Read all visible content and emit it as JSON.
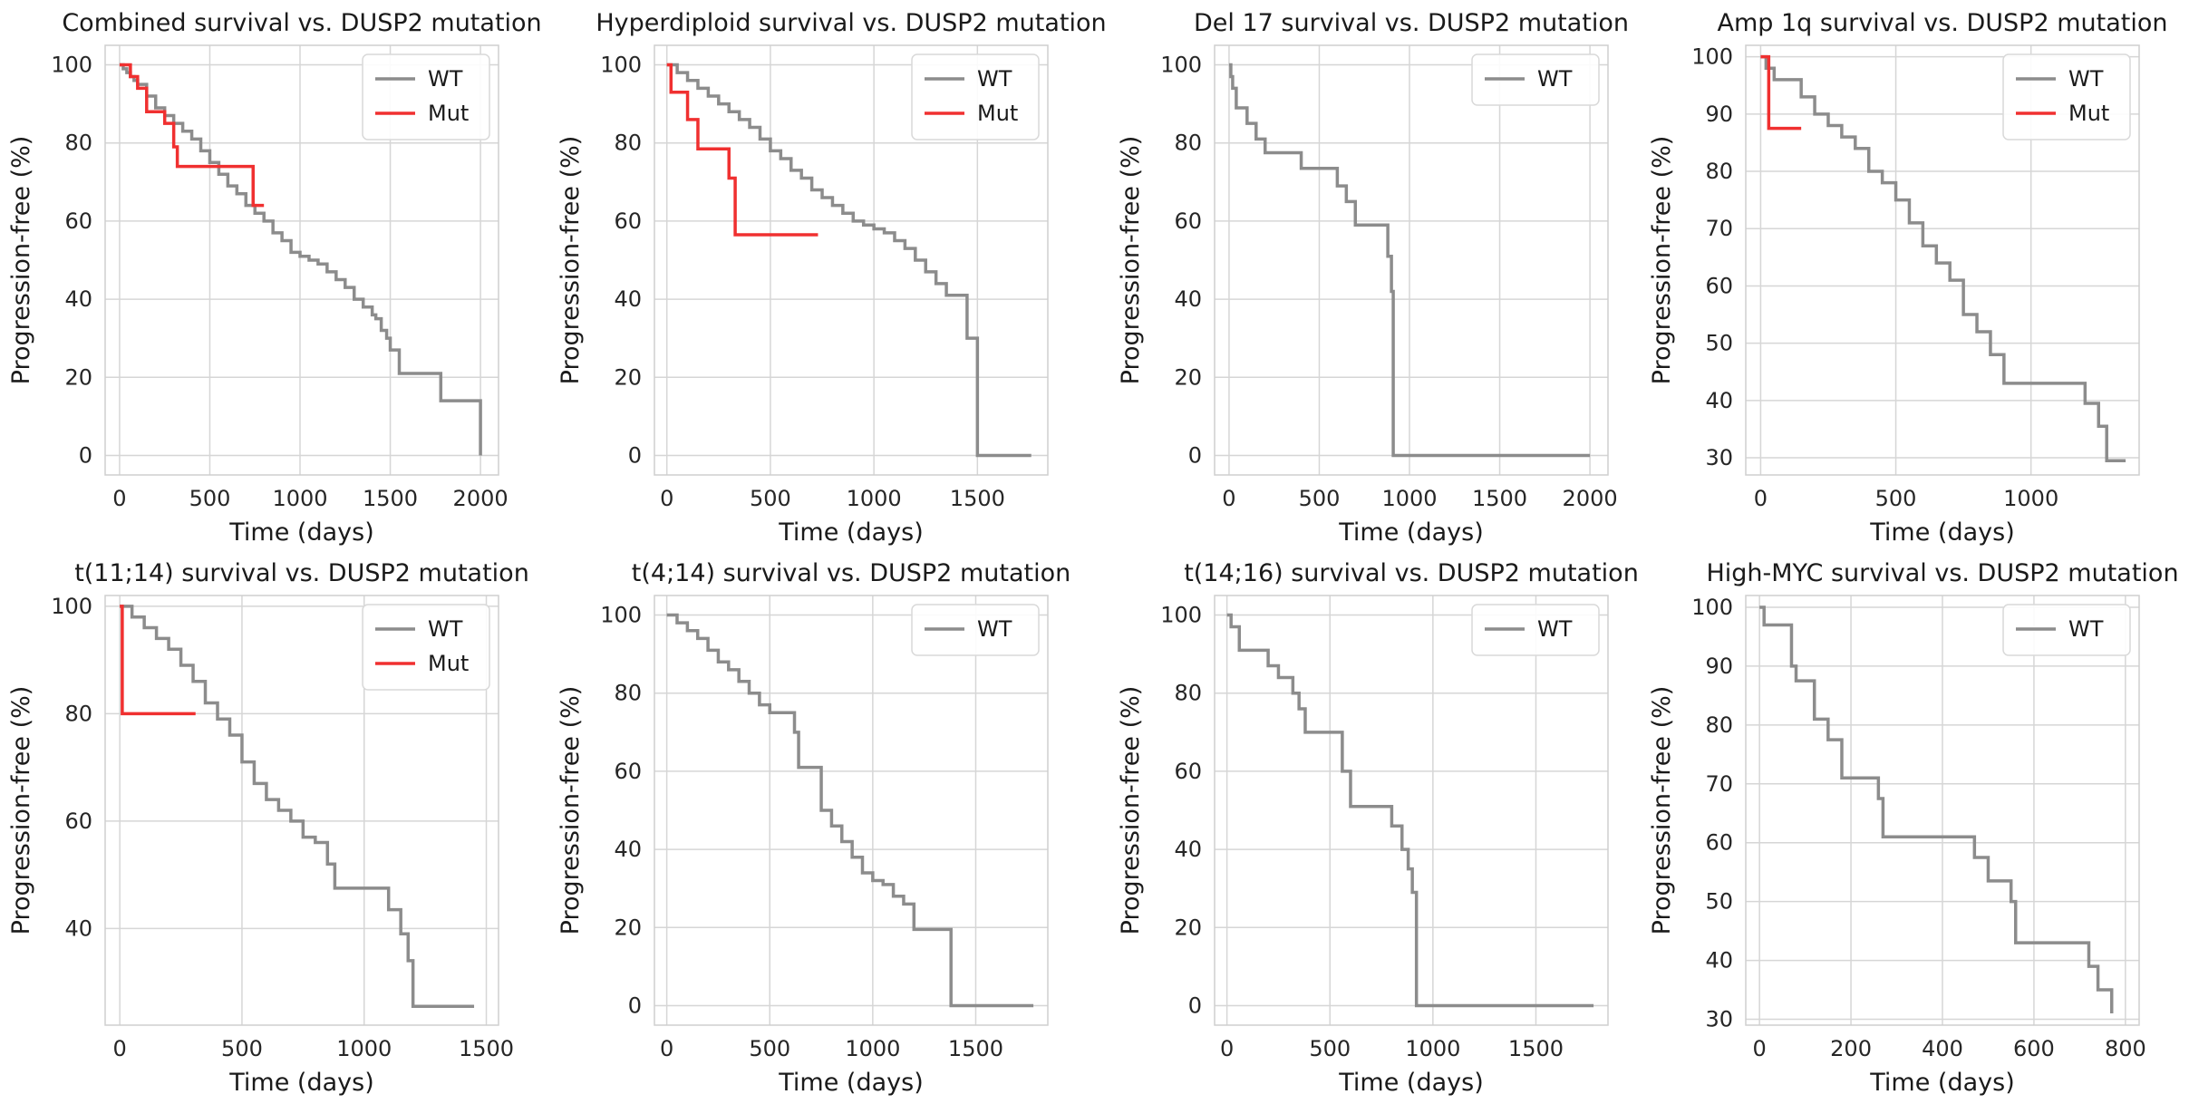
{
  "chart_data": [
    {
      "type": "line",
      "title": "Combined survival vs. DUSP2 mutation",
      "xlabel": "Time (days)",
      "ylabel": "Progression-free (%)",
      "xlim": [
        -80,
        2100
      ],
      "ylim": [
        -5,
        105
      ],
      "xticks": [
        0,
        500,
        1000,
        1500,
        2000
      ],
      "yticks": [
        0,
        20,
        40,
        60,
        80,
        100
      ],
      "grid": true,
      "legend": "top-right",
      "series": [
        {
          "name": "WT",
          "color": "#8c8c8c",
          "x": [
            0,
            20,
            40,
            60,
            80,
            100,
            150,
            200,
            250,
            300,
            350,
            400,
            450,
            500,
            550,
            600,
            650,
            700,
            750,
            800,
            850,
            900,
            950,
            1000,
            1050,
            1100,
            1150,
            1200,
            1250,
            1300,
            1350,
            1400,
            1420,
            1450,
            1480,
            1500,
            1550,
            1650,
            1760,
            1780,
            2000
          ],
          "y": [
            100,
            99,
            98,
            97,
            96,
            95,
            92,
            89,
            87,
            85,
            83,
            81,
            78,
            75,
            72,
            69,
            67,
            64,
            62,
            60,
            57,
            55,
            52,
            51,
            50,
            49,
            47,
            45,
            43,
            40,
            38,
            36,
            35,
            32,
            30,
            27,
            21,
            21,
            21,
            14,
            0
          ]
        },
        {
          "name": "Mut",
          "color": "#f03030",
          "x": [
            0,
            60,
            100,
            150,
            250,
            300,
            320,
            700,
            740,
            800
          ],
          "y": [
            100,
            97,
            94,
            88,
            85,
            79,
            74,
            74,
            64,
            64
          ]
        }
      ]
    },
    {
      "type": "line",
      "title": "Hyperdiploid survival vs. DUSP2 mutation",
      "xlabel": "Time (days)",
      "ylabel": "Progression-free (%)",
      "xlim": [
        -60,
        1840
      ],
      "ylim": [
        -5,
        105
      ],
      "xticks": [
        0,
        500,
        1000,
        1500
      ],
      "yticks": [
        0,
        20,
        40,
        60,
        80,
        100
      ],
      "grid": true,
      "legend": "top-right",
      "series": [
        {
          "name": "WT",
          "color": "#8c8c8c",
          "x": [
            0,
            50,
            100,
            150,
            200,
            250,
            300,
            350,
            400,
            450,
            500,
            550,
            600,
            650,
            700,
            750,
            800,
            850,
            900,
            950,
            1000,
            1050,
            1100,
            1150,
            1200,
            1250,
            1300,
            1350,
            1400,
            1450,
            1490,
            1500,
            1760
          ],
          "y": [
            100,
            98,
            96,
            94,
            92,
            90,
            88,
            86,
            84,
            81,
            78,
            76,
            73,
            71,
            68,
            66,
            64,
            62,
            60,
            59,
            58,
            57,
            55,
            53,
            50,
            47,
            44,
            41,
            41,
            30,
            30,
            0,
            0
          ]
        },
        {
          "name": "Mut",
          "color": "#f03030",
          "x": [
            0,
            20,
            100,
            150,
            300,
            330,
            730
          ],
          "y": [
            100,
            93,
            86,
            78.5,
            71,
            56.5,
            56.5
          ]
        }
      ]
    },
    {
      "type": "line",
      "title": "Del 17 survival vs. DUSP2 mutation",
      "xlabel": "Time (days)",
      "ylabel": "Progression-free (%)",
      "xlim": [
        -80,
        2100
      ],
      "ylim": [
        -5,
        105
      ],
      "xticks": [
        0,
        500,
        1000,
        1500,
        2000
      ],
      "yticks": [
        0,
        20,
        40,
        60,
        80,
        100
      ],
      "grid": true,
      "legend": "top-right",
      "series": [
        {
          "name": "WT",
          "color": "#8c8c8c",
          "x": [
            0,
            10,
            20,
            40,
            100,
            150,
            200,
            350,
            400,
            550,
            600,
            650,
            700,
            850,
            880,
            900,
            910,
            920,
            2000
          ],
          "y": [
            100,
            97,
            94,
            89,
            85,
            81,
            77.5,
            77.5,
            73.5,
            73.5,
            69,
            65,
            59,
            59,
            51,
            42,
            0,
            0,
            0
          ]
        }
      ]
    },
    {
      "type": "line",
      "title": "Amp 1q survival vs. DUSP2 mutation",
      "xlabel": "Time (days)",
      "ylabel": "Progression-free (%)",
      "xlim": [
        -55,
        1400
      ],
      "ylim": [
        27,
        102
      ],
      "xticks": [
        0,
        500,
        1000
      ],
      "yticks": [
        30,
        40,
        50,
        60,
        70,
        80,
        90,
        100
      ],
      "grid": true,
      "legend": "top-right",
      "series": [
        {
          "name": "WT",
          "color": "#8c8c8c",
          "x": [
            0,
            20,
            50,
            100,
            150,
            200,
            250,
            300,
            350,
            400,
            450,
            500,
            550,
            600,
            650,
            700,
            750,
            800,
            850,
            900,
            1000,
            1100,
            1150,
            1200,
            1250,
            1280,
            1350
          ],
          "y": [
            100,
            98,
            96,
            96,
            93,
            90,
            88,
            86,
            84,
            80,
            78,
            75,
            71,
            67,
            64,
            61,
            55,
            52,
            48,
            43,
            43,
            43,
            43,
            39.5,
            35.5,
            29.5,
            29.5
          ]
        },
        {
          "name": "Mut",
          "color": "#f03030",
          "x": [
            0,
            30,
            150
          ],
          "y": [
            100,
            87.5,
            87.5
          ]
        }
      ]
    },
    {
      "type": "line",
      "title": "t(11;14) survival vs. DUSP2 mutation",
      "xlabel": "Time (days)",
      "ylabel": "Progression-free (%)",
      "xlim": [
        -60,
        1550
      ],
      "ylim": [
        22,
        102
      ],
      "xticks": [
        0,
        500,
        1000,
        1500
      ],
      "yticks": [
        40,
        60,
        80,
        100
      ],
      "grid": true,
      "legend": "top-right",
      "series": [
        {
          "name": "WT",
          "color": "#8c8c8c",
          "x": [
            0,
            50,
            100,
            150,
            200,
            250,
            300,
            350,
            400,
            450,
            500,
            550,
            600,
            650,
            700,
            750,
            800,
            850,
            880,
            950,
            1050,
            1100,
            1150,
            1180,
            1200,
            1450
          ],
          "y": [
            100,
            98,
            96,
            94,
            92,
            89,
            86,
            82,
            79,
            76,
            71,
            67,
            64,
            62,
            60,
            57,
            56,
            52,
            47.5,
            47.5,
            47.5,
            43.5,
            39,
            34,
            25.5,
            25.5
          ]
        },
        {
          "name": "Mut",
          "color": "#f03030",
          "x": [
            0,
            10,
            310
          ],
          "y": [
            100,
            80,
            80
          ]
        }
      ]
    },
    {
      "type": "line",
      "title": "t(4;14) survival vs. DUSP2 mutation",
      "xlabel": "Time (days)",
      "ylabel": "Progression-free (%)",
      "xlim": [
        -60,
        1850
      ],
      "ylim": [
        -5,
        105
      ],
      "xticks": [
        0,
        500,
        1000,
        1500
      ],
      "yticks": [
        0,
        20,
        40,
        60,
        80,
        100
      ],
      "grid": true,
      "legend": "top-right",
      "series": [
        {
          "name": "WT",
          "color": "#8c8c8c",
          "x": [
            0,
            50,
            100,
            150,
            200,
            250,
            300,
            350,
            400,
            450,
            500,
            550,
            600,
            620,
            640,
            700,
            750,
            800,
            850,
            900,
            950,
            1000,
            1050,
            1100,
            1150,
            1200,
            1300,
            1350,
            1380,
            1780
          ],
          "y": [
            100,
            98,
            96,
            94,
            91,
            88,
            86,
            83,
            80,
            77,
            75,
            75,
            75,
            70,
            61,
            61,
            50,
            46,
            42,
            38,
            34,
            32,
            31,
            28,
            26,
            19.5,
            19.5,
            19.5,
            0,
            0
          ]
        }
      ]
    },
    {
      "type": "line",
      "title": "t(14;16) survival vs. DUSP2 mutation",
      "xlabel": "Time (days)",
      "ylabel": "Progression-free (%)",
      "xlim": [
        -60,
        1850
      ],
      "ylim": [
        -5,
        105
      ],
      "xticks": [
        0,
        500,
        1000,
        1500
      ],
      "yticks": [
        0,
        20,
        40,
        60,
        80,
        100
      ],
      "grid": true,
      "legend": "top-right",
      "series": [
        {
          "name": "WT",
          "color": "#8c8c8c",
          "x": [
            0,
            20,
            60,
            200,
            250,
            320,
            350,
            380,
            520,
            560,
            600,
            700,
            800,
            850,
            880,
            900,
            920,
            1000,
            1780
          ],
          "y": [
            100,
            97,
            91,
            87,
            84,
            80,
            76,
            70,
            70,
            60,
            51,
            51,
            46,
            40,
            35,
            29,
            0,
            0,
            0
          ]
        }
      ]
    },
    {
      "type": "line",
      "title": "High-MYC survival vs. DUSP2 mutation",
      "xlabel": "Time (days)",
      "ylabel": "Progression-free (%)",
      "xlim": [
        -30,
        830
      ],
      "ylim": [
        29,
        102
      ],
      "xticks": [
        0,
        200,
        400,
        600,
        800
      ],
      "yticks": [
        30,
        40,
        50,
        60,
        70,
        80,
        90,
        100
      ],
      "grid": true,
      "legend": "top-right",
      "series": [
        {
          "name": "WT",
          "color": "#8c8c8c",
          "x": [
            0,
            10,
            60,
            70,
            80,
            120,
            150,
            180,
            250,
            260,
            270,
            360,
            470,
            500,
            550,
            560,
            700,
            720,
            740,
            770
          ],
          "y": [
            100,
            97,
            97,
            90,
            87.5,
            81,
            77.5,
            71,
            71,
            67.5,
            61,
            61,
            57.5,
            53.5,
            50,
            43,
            43,
            39,
            35,
            31
          ]
        }
      ]
    }
  ]
}
